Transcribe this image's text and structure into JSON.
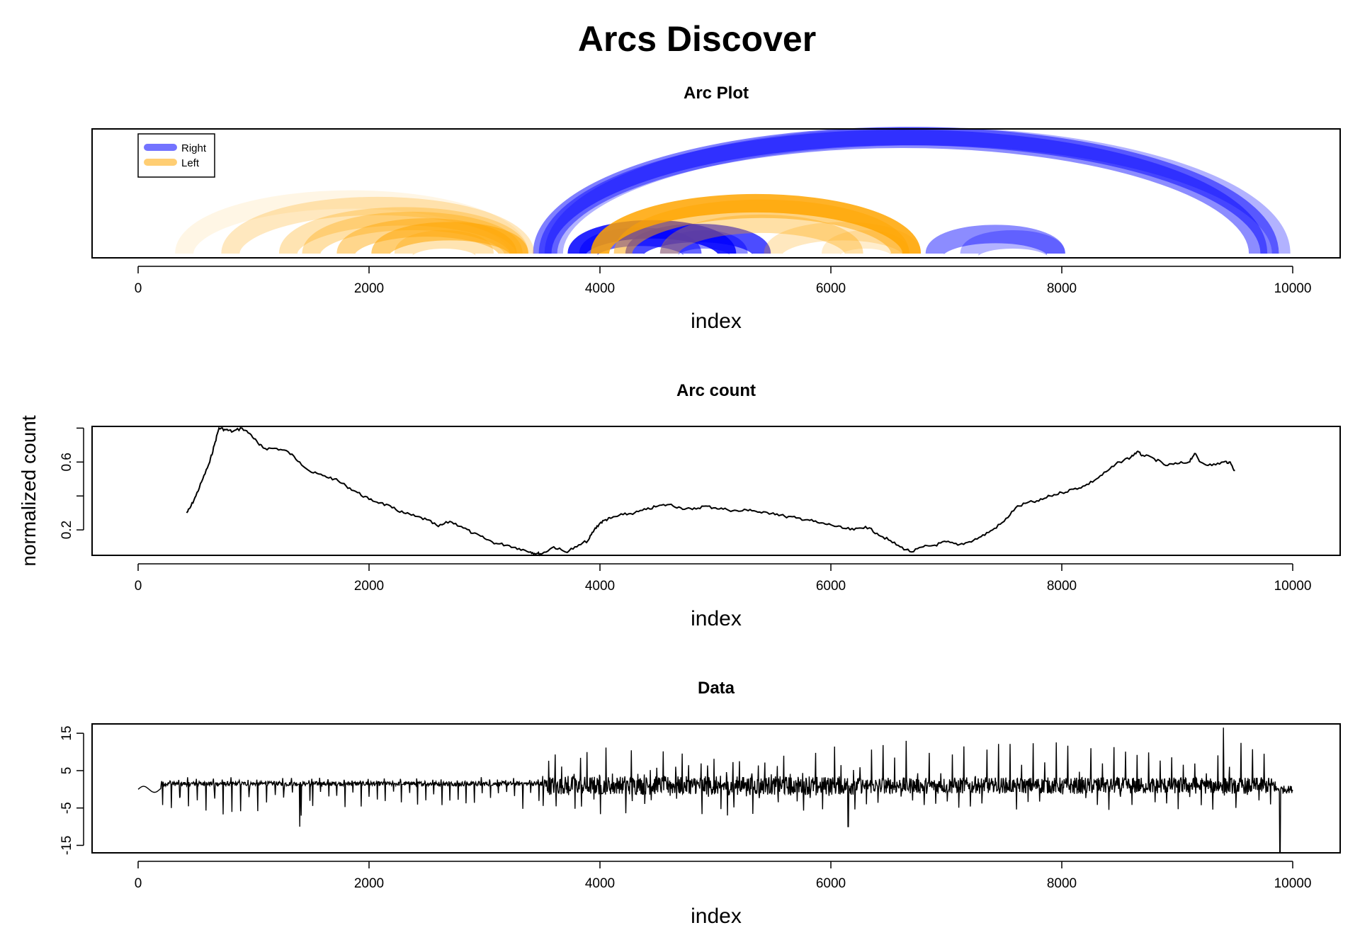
{
  "figure": {
    "title": "Arcs Discover"
  },
  "colors": {
    "right": "#0000FF",
    "left": "#FFA500",
    "line": "#000000",
    "frame": "#000000"
  },
  "chart_data": [
    {
      "type": "arc",
      "title": "Arc Plot",
      "xlabel": "index",
      "ylabel": "",
      "xlim": [
        0,
        10000
      ],
      "xticks": [
        "0",
        "2000",
        "4000",
        "6000",
        "8000",
        "10000"
      ],
      "legend": {
        "placement": "top-left",
        "entries": [
          "Right",
          "Left"
        ]
      },
      "series": [
        {
          "name": "Right",
          "arcs": [
            {
              "from": 3500,
              "to": 9800,
              "opacity": 0.5
            },
            {
              "from": 3550,
              "to": 9700,
              "opacity": 0.45
            },
            {
              "from": 3600,
              "to": 9900,
              "opacity": 0.3
            },
            {
              "from": 3800,
              "to": 5100,
              "opacity": 0.85
            },
            {
              "from": 3900,
              "to": 4800,
              "opacity": 0.6
            },
            {
              "from": 4300,
              "to": 5400,
              "opacity": 0.7
            },
            {
              "from": 4600,
              "to": 5200,
              "opacity": 0.45
            },
            {
              "from": 6900,
              "to": 7950,
              "opacity": 0.45
            },
            {
              "from": 7200,
              "to": 7950,
              "opacity": 0.3
            }
          ]
        },
        {
          "name": "Left",
          "arcs": [
            {
              "from": 400,
              "to": 3300,
              "opacity": 0.1
            },
            {
              "from": 800,
              "to": 3350,
              "opacity": 0.25
            },
            {
              "from": 1300,
              "to": 3300,
              "opacity": 0.3
            },
            {
              "from": 1500,
              "to": 3250,
              "opacity": 0.35
            },
            {
              "from": 1800,
              "to": 3200,
              "opacity": 0.45
            },
            {
              "from": 2100,
              "to": 3300,
              "opacity": 0.55
            },
            {
              "from": 2300,
              "to": 3000,
              "opacity": 0.3
            },
            {
              "from": 4000,
              "to": 6700,
              "opacity": 0.85
            },
            {
              "from": 4200,
              "to": 6600,
              "opacity": 0.5
            },
            {
              "from": 4600,
              "to": 6200,
              "opacity": 0.35
            },
            {
              "from": 5500,
              "to": 6700,
              "opacity": 0.25
            },
            {
              "from": 6000,
              "to": 6600,
              "opacity": 0.2
            }
          ]
        }
      ]
    },
    {
      "type": "line",
      "title": "Arc count",
      "xlabel": "index",
      "ylabel": "normalized count",
      "xlim": [
        0,
        10000
      ],
      "ylim": [
        0.05,
        0.81
      ],
      "xticks": [
        "0",
        "2000",
        "4000",
        "6000",
        "8000",
        "10000"
      ],
      "yticks": [
        "0.2",
        "0.6"
      ],
      "x": [
        420,
        450,
        500,
        560,
        620,
        660,
        700,
        760,
        820,
        900,
        980,
        1050,
        1100,
        1200,
        1300,
        1400,
        1500,
        1600,
        1700,
        1800,
        1900,
        2000,
        2100,
        2200,
        2300,
        2400,
        2500,
        2600,
        2700,
        2800,
        2900,
        3000,
        3100,
        3200,
        3300,
        3400,
        3450,
        3500,
        3600,
        3700,
        3800,
        3900,
        3950,
        4000,
        4050,
        4100,
        4200,
        4300,
        4400,
        4500,
        4600,
        4700,
        4800,
        4900,
        5000,
        5100,
        5200,
        5300,
        5400,
        5500,
        5600,
        5700,
        5800,
        5900,
        6000,
        6100,
        6200,
        6300,
        6400,
        6500,
        6600,
        6700,
        6800,
        6900,
        7000,
        7100,
        7200,
        7300,
        7400,
        7500,
        7600,
        7700,
        7800,
        7900,
        8000,
        8100,
        8200,
        8300,
        8400,
        8500,
        8600,
        8650,
        8700,
        8800,
        8900,
        9000,
        9100,
        9150,
        9200,
        9300,
        9400,
        9450,
        9500
      ],
      "y": [
        0.3,
        0.33,
        0.4,
        0.5,
        0.6,
        0.7,
        0.8,
        0.79,
        0.78,
        0.8,
        0.76,
        0.7,
        0.68,
        0.68,
        0.66,
        0.6,
        0.54,
        0.52,
        0.5,
        0.46,
        0.42,
        0.38,
        0.36,
        0.33,
        0.3,
        0.28,
        0.26,
        0.22,
        0.25,
        0.22,
        0.18,
        0.15,
        0.12,
        0.11,
        0.09,
        0.07,
        0.06,
        0.06,
        0.1,
        0.07,
        0.1,
        0.14,
        0.2,
        0.24,
        0.26,
        0.27,
        0.29,
        0.3,
        0.32,
        0.34,
        0.35,
        0.33,
        0.32,
        0.34,
        0.33,
        0.32,
        0.31,
        0.32,
        0.3,
        0.3,
        0.28,
        0.27,
        0.26,
        0.24,
        0.23,
        0.21,
        0.2,
        0.22,
        0.18,
        0.14,
        0.1,
        0.07,
        0.1,
        0.11,
        0.13,
        0.11,
        0.13,
        0.16,
        0.2,
        0.25,
        0.33,
        0.36,
        0.37,
        0.4,
        0.42,
        0.44,
        0.46,
        0.5,
        0.55,
        0.6,
        0.63,
        0.66,
        0.64,
        0.62,
        0.58,
        0.59,
        0.6,
        0.65,
        0.6,
        0.58,
        0.6,
        0.6,
        0.55
      ]
    },
    {
      "type": "line",
      "title": "Data",
      "xlabel": "index",
      "ylabel": "",
      "xlim": [
        0,
        10000
      ],
      "ylim": [
        -17,
        17.5
      ],
      "xticks": [
        "0",
        "2000",
        "4000",
        "6000",
        "8000",
        "10000"
      ],
      "yticks": [
        "-15",
        "-5",
        "5",
        "15"
      ],
      "regimes": [
        {
          "from": 0,
          "to": 200,
          "period": 0,
          "base": 0,
          "peak": 0,
          "trough": 0,
          "noise": 0.8
        },
        {
          "from": 200,
          "to": 1500,
          "period": 75,
          "base": 1.5,
          "peak": 3.5,
          "trough": -9,
          "noise": 0.6
        },
        {
          "from": 1500,
          "to": 3500,
          "period": 70,
          "base": 1.5,
          "peak": 3.5,
          "trough": -6.5,
          "noise": 0.6
        },
        {
          "from": 3500,
          "to": 6200,
          "period": 55,
          "base": 1,
          "peak": 12,
          "trough": -9,
          "noise": 2.5
        },
        {
          "from": 6200,
          "to": 9850,
          "period": 50,
          "base": 1,
          "peak": 13,
          "trough": -6,
          "noise": 2.2
        },
        {
          "from": 9850,
          "to": 10000,
          "period": 0,
          "base": 0,
          "peak": 0,
          "trough": 0,
          "noise": 1.0
        }
      ],
      "events": [
        {
          "x": 9890,
          "y": -17
        },
        {
          "x": 9400,
          "y": 16.5
        },
        {
          "x": 1400,
          "y": -10
        },
        {
          "x": 6150,
          "y": -10
        }
      ]
    }
  ]
}
